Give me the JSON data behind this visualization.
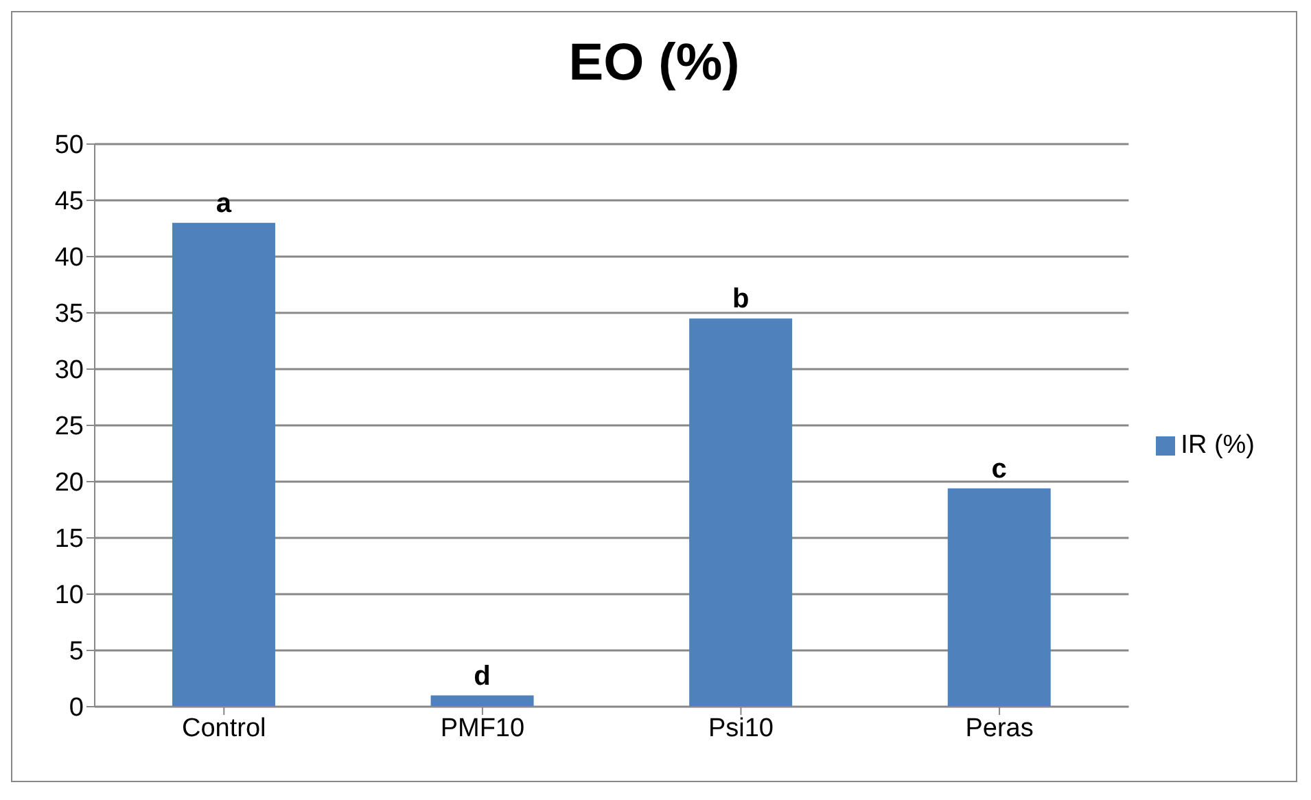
{
  "chart_data": {
    "type": "bar",
    "title": "EO (%)",
    "categories": [
      "Control",
      "PMF10",
      "Psi10",
      "Peras"
    ],
    "series": [
      {
        "name": "IR (%)",
        "color": "#4f81bd",
        "values": [
          43,
          1,
          34.5,
          19.4
        ]
      }
    ],
    "value_labels": [
      "a",
      "d",
      "b",
      "c"
    ],
    "ylim": [
      0,
      50
    ],
    "yticks": [
      0,
      5,
      10,
      15,
      20,
      25,
      30,
      35,
      40,
      45,
      50
    ],
    "grid": "y",
    "legend": "right"
  }
}
